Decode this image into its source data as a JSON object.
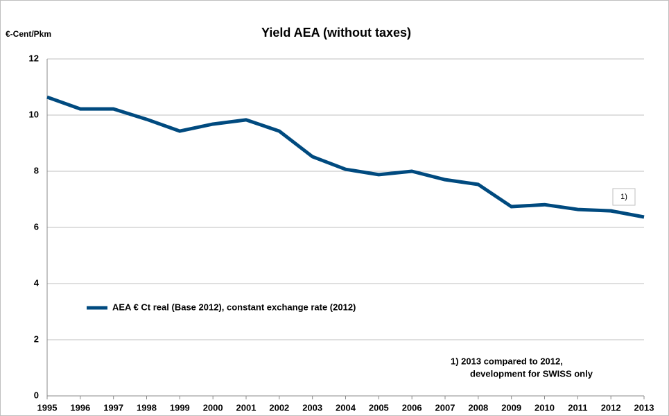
{
  "chart_data": {
    "type": "line",
    "title": "Yield AEA  (without taxes)",
    "y_label": "€-Cent/Pkm",
    "categories": [
      "1995",
      "1996",
      "1997",
      "1998",
      "1999",
      "2000",
      "2001",
      "2002",
      "2003",
      "2004",
      "2005",
      "2006",
      "2007",
      "2008",
      "2009",
      "2010",
      "2011",
      "2012",
      "2013"
    ],
    "series": [
      {
        "name": "AEA € Ct real (Base 2012), constant exchange rate (2012)",
        "color": "#004a7f",
        "values": [
          10.64,
          10.22,
          10.22,
          9.85,
          9.43,
          9.68,
          9.83,
          9.43,
          8.52,
          8.07,
          7.88,
          8.0,
          7.7,
          7.53,
          6.74,
          6.81,
          6.64,
          6.59,
          6.37
        ]
      }
    ],
    "ylim": [
      0,
      12
    ],
    "yticks": [
      0,
      2,
      4,
      6,
      8,
      10,
      12
    ],
    "grid": true,
    "marker_label": "1)",
    "footnote": [
      "1)  2013 compared to 2012,",
      "development for SWISS only"
    ]
  }
}
